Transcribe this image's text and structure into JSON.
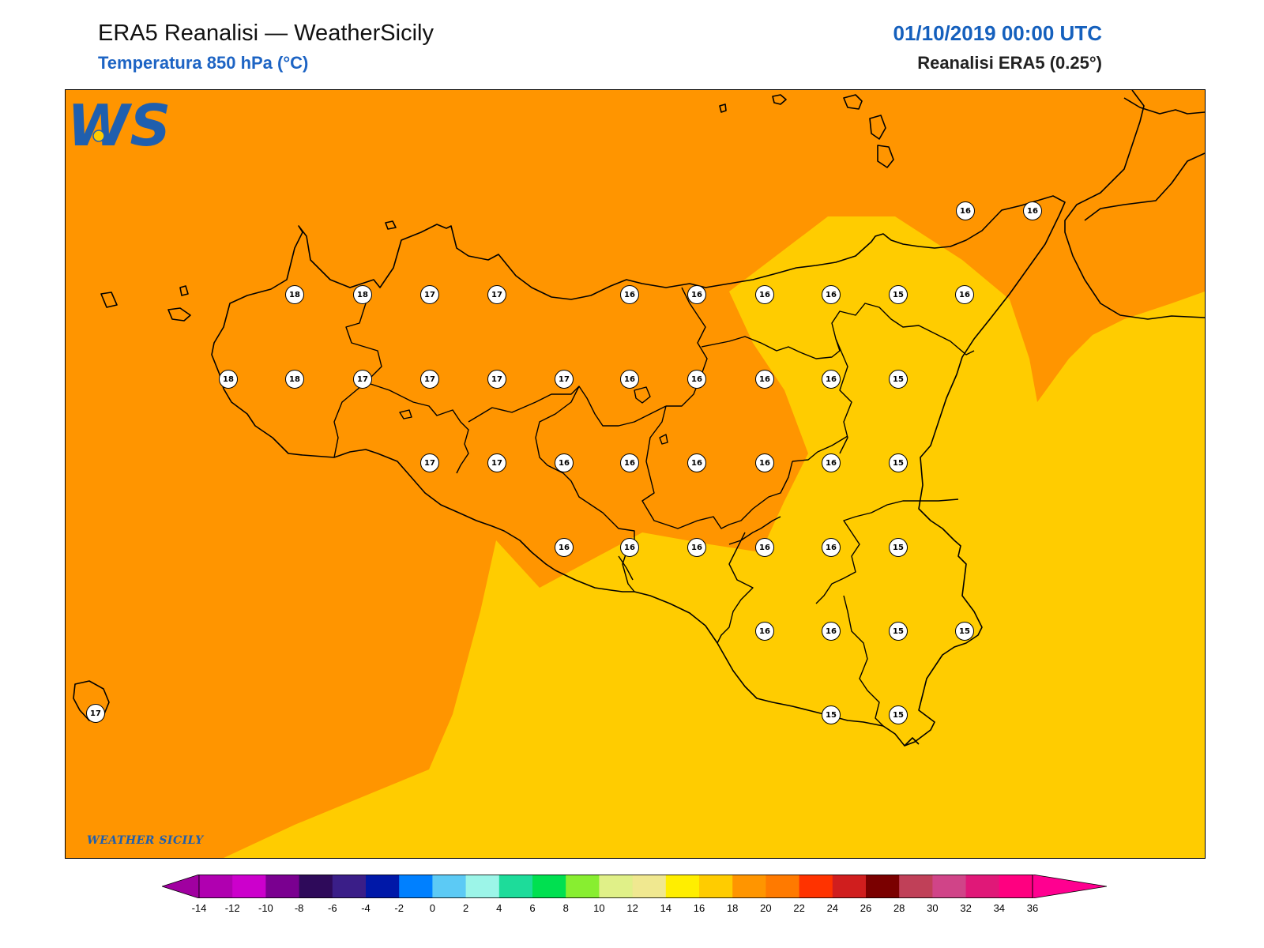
{
  "header": {
    "title": "ERA5 Reanalisi — WeatherSicily",
    "subtitle": "Temperatura 850 hPa (°C)",
    "datetime": "01/10/2019 00:00 UTC",
    "source": "Reanalisi ERA5 (0.25°)"
  },
  "map": {
    "background_color": "#ff9500",
    "fill_colors": {
      "orange_16_18": "#ff9500",
      "yellow_14_16": "#ffcc00"
    },
    "station_values": [
      {
        "label": "18",
        "row": 1
      },
      {
        "label": "18",
        "row": 1
      },
      {
        "label": "17",
        "row": 1
      },
      {
        "label": "17",
        "row": 1
      },
      {
        "label": "16",
        "row": 1
      },
      {
        "label": "16",
        "row": 1
      },
      {
        "label": "16",
        "row": 1
      },
      {
        "label": "16",
        "row": 1
      },
      {
        "label": "15",
        "row": 1
      },
      {
        "label": "16",
        "row": 1
      },
      {
        "label": "16",
        "row": 0
      },
      {
        "label": "16",
        "row": 0
      },
      {
        "label": "18",
        "row": 2
      },
      {
        "label": "18",
        "row": 2
      },
      {
        "label": "17",
        "row": 2
      },
      {
        "label": "17",
        "row": 2
      },
      {
        "label": "17",
        "row": 2
      },
      {
        "label": "17",
        "row": 2
      },
      {
        "label": "16",
        "row": 2
      },
      {
        "label": "16",
        "row": 2
      },
      {
        "label": "16",
        "row": 2
      },
      {
        "label": "16",
        "row": 2
      },
      {
        "label": "15",
        "row": 2
      },
      {
        "label": "17",
        "row": 3
      },
      {
        "label": "17",
        "row": 3
      },
      {
        "label": "16",
        "row": 3
      },
      {
        "label": "16",
        "row": 3
      },
      {
        "label": "16",
        "row": 3
      },
      {
        "label": "16",
        "row": 3
      },
      {
        "label": "16",
        "row": 3
      },
      {
        "label": "15",
        "row": 3
      },
      {
        "label": "16",
        "row": 4
      },
      {
        "label": "16",
        "row": 4
      },
      {
        "label": "16",
        "row": 4
      },
      {
        "label": "16",
        "row": 4
      },
      {
        "label": "16",
        "row": 4
      },
      {
        "label": "15",
        "row": 4
      },
      {
        "label": "16",
        "row": 5
      },
      {
        "label": "16",
        "row": 5
      },
      {
        "label": "15",
        "row": 5
      },
      {
        "label": "15",
        "row": 5
      },
      {
        "label": "15",
        "row": 6
      },
      {
        "label": "15",
        "row": 6
      },
      {
        "label": "17",
        "row": 6
      }
    ]
  },
  "logo": {
    "text": "WEATHER SICILY",
    "letters": "WS"
  },
  "colorbar": {
    "ticks": [
      "-14",
      "-12",
      "-10",
      "-8",
      "-6",
      "-4",
      "-2",
      "0",
      "2",
      "4",
      "6",
      "8",
      "10",
      "12",
      "14",
      "16",
      "18",
      "20",
      "22",
      "24",
      "26",
      "28",
      "30",
      "32",
      "34",
      "36"
    ],
    "colors": [
      "#b000b0",
      "#cc00cc",
      "#7a0090",
      "#2e0a5a",
      "#3a1e88",
      "#0018a8",
      "#0080ff",
      "#5ccaf5",
      "#9cf5e8",
      "#1ddc9a",
      "#00e050",
      "#88ee30",
      "#e0f088",
      "#f0e890",
      "#ffee00",
      "#ffcc00",
      "#ff9500",
      "#ff7a00",
      "#ff3300",
      "#d01e1e",
      "#7a0000",
      "#c04058",
      "#d04488",
      "#e01878",
      "#ff0080"
    ],
    "under_color": "#a000a0",
    "over_color": "#ff0090"
  }
}
